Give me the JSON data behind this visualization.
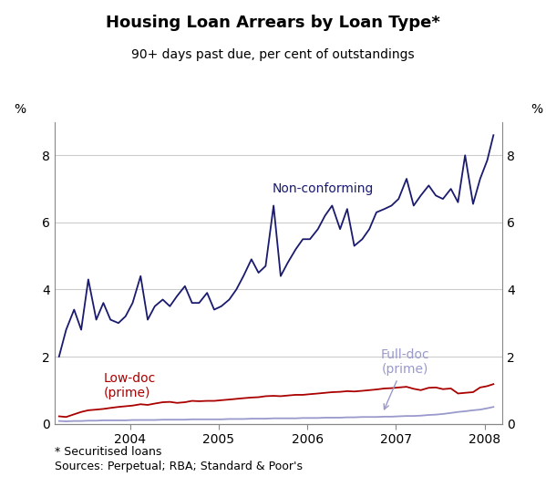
{
  "title": "Housing Loan Arrears by Loan Type*",
  "subtitle": "90+ days past due, per cent of outstandings",
  "ylabel_left": "%",
  "ylabel_right": "%",
  "footnote1": "* Securitised loans",
  "footnote2": "Sources: Perpetual; RBA; Standard & Poor's",
  "ylim": [
    0,
    9
  ],
  "yticks": [
    0,
    2,
    4,
    6,
    8
  ],
  "bg_color": "#ffffff",
  "grid_color": "#cccccc",
  "non_conforming_color": "#1a1a6e",
  "low_doc_color": "#aa0000",
  "full_doc_color": "#9999cc",
  "non_conforming_x": [
    2003.2,
    2003.28,
    2003.37,
    2003.45,
    2003.53,
    2003.62,
    2003.7,
    2003.78,
    2003.87,
    2003.95,
    2004.03,
    2004.12,
    2004.2,
    2004.28,
    2004.37,
    2004.45,
    2004.53,
    2004.62,
    2004.7,
    2004.78,
    2004.87,
    2004.95,
    2005.03,
    2005.12,
    2005.2,
    2005.28,
    2005.37,
    2005.45,
    2005.53,
    2005.62,
    2005.7,
    2005.78,
    2005.87,
    2005.95,
    2006.03,
    2006.12,
    2006.2,
    2006.28,
    2006.37,
    2006.45,
    2006.53,
    2006.62,
    2006.7,
    2006.78,
    2006.87,
    2006.95,
    2007.03,
    2007.12,
    2007.2,
    2007.28,
    2007.37,
    2007.45,
    2007.53,
    2007.62,
    2007.7,
    2007.78,
    2007.87,
    2007.95,
    2008.03,
    2008.1
  ],
  "non_conforming_y": [
    2.0,
    2.8,
    3.4,
    2.8,
    4.3,
    3.1,
    3.6,
    3.1,
    3.0,
    3.2,
    3.6,
    4.4,
    3.1,
    3.5,
    3.7,
    3.5,
    3.8,
    4.1,
    3.6,
    3.6,
    3.9,
    3.4,
    3.5,
    3.7,
    4.0,
    4.4,
    4.9,
    4.5,
    4.7,
    6.5,
    4.4,
    4.8,
    5.2,
    5.5,
    5.5,
    5.8,
    6.2,
    6.5,
    5.8,
    6.4,
    5.3,
    5.5,
    5.8,
    6.3,
    6.4,
    6.5,
    6.7,
    7.3,
    6.5,
    6.8,
    7.1,
    6.8,
    6.7,
    7.0,
    6.6,
    8.0,
    6.55,
    7.3,
    7.85,
    8.6
  ],
  "low_doc_x": [
    2003.2,
    2003.28,
    2003.37,
    2003.45,
    2003.53,
    2003.62,
    2003.7,
    2003.78,
    2003.87,
    2003.95,
    2004.03,
    2004.12,
    2004.2,
    2004.28,
    2004.37,
    2004.45,
    2004.53,
    2004.62,
    2004.7,
    2004.78,
    2004.87,
    2004.95,
    2005.03,
    2005.12,
    2005.2,
    2005.28,
    2005.37,
    2005.45,
    2005.53,
    2005.62,
    2005.7,
    2005.78,
    2005.87,
    2005.95,
    2006.03,
    2006.12,
    2006.2,
    2006.28,
    2006.37,
    2006.45,
    2006.53,
    2006.62,
    2006.7,
    2006.78,
    2006.87,
    2006.95,
    2007.03,
    2007.12,
    2007.2,
    2007.28,
    2007.37,
    2007.45,
    2007.53,
    2007.62,
    2007.7,
    2007.78,
    2007.87,
    2007.95,
    2008.03,
    2008.1
  ],
  "low_doc_y": [
    0.22,
    0.2,
    0.28,
    0.35,
    0.4,
    0.42,
    0.44,
    0.47,
    0.5,
    0.52,
    0.54,
    0.58,
    0.56,
    0.6,
    0.64,
    0.65,
    0.62,
    0.64,
    0.68,
    0.67,
    0.68,
    0.68,
    0.7,
    0.72,
    0.74,
    0.76,
    0.78,
    0.79,
    0.82,
    0.83,
    0.82,
    0.84,
    0.86,
    0.86,
    0.88,
    0.9,
    0.92,
    0.94,
    0.95,
    0.97,
    0.96,
    0.98,
    1.0,
    1.02,
    1.05,
    1.06,
    1.08,
    1.1,
    1.04,
    1.0,
    1.07,
    1.08,
    1.03,
    1.05,
    0.9,
    0.92,
    0.94,
    1.08,
    1.12,
    1.18
  ],
  "full_doc_x": [
    2003.2,
    2003.28,
    2003.37,
    2003.45,
    2003.53,
    2003.62,
    2003.7,
    2003.78,
    2003.87,
    2003.95,
    2004.03,
    2004.12,
    2004.2,
    2004.28,
    2004.37,
    2004.45,
    2004.53,
    2004.62,
    2004.7,
    2004.78,
    2004.87,
    2004.95,
    2005.03,
    2005.12,
    2005.2,
    2005.28,
    2005.37,
    2005.45,
    2005.53,
    2005.62,
    2005.7,
    2005.78,
    2005.87,
    2005.95,
    2006.03,
    2006.12,
    2006.2,
    2006.28,
    2006.37,
    2006.45,
    2006.53,
    2006.62,
    2006.7,
    2006.78,
    2006.87,
    2006.95,
    2007.03,
    2007.12,
    2007.2,
    2007.28,
    2007.37,
    2007.45,
    2007.53,
    2007.62,
    2007.7,
    2007.78,
    2007.87,
    2007.95,
    2008.03,
    2008.1
  ],
  "full_doc_y": [
    0.08,
    0.07,
    0.08,
    0.08,
    0.09,
    0.09,
    0.1,
    0.1,
    0.1,
    0.1,
    0.11,
    0.11,
    0.11,
    0.11,
    0.12,
    0.12,
    0.12,
    0.12,
    0.13,
    0.13,
    0.13,
    0.13,
    0.13,
    0.14,
    0.14,
    0.14,
    0.15,
    0.15,
    0.15,
    0.16,
    0.16,
    0.16,
    0.16,
    0.17,
    0.17,
    0.17,
    0.18,
    0.18,
    0.18,
    0.19,
    0.19,
    0.2,
    0.2,
    0.2,
    0.21,
    0.21,
    0.22,
    0.23,
    0.23,
    0.24,
    0.26,
    0.27,
    0.29,
    0.32,
    0.35,
    0.37,
    0.4,
    0.42,
    0.46,
    0.5
  ]
}
